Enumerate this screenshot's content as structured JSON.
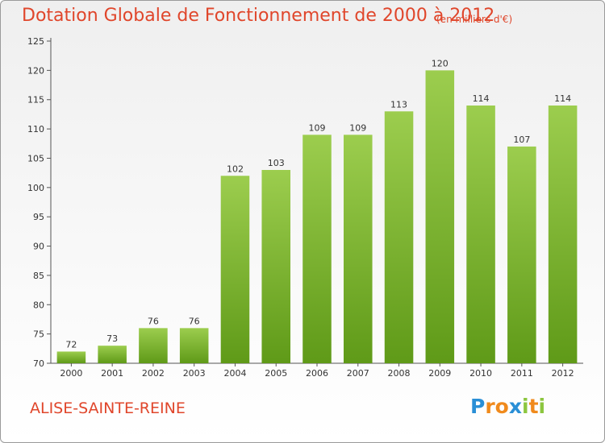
{
  "chart_data": {
    "type": "bar",
    "title": "Dotation Globale de Fonctionnement de 2000 à 2012",
    "subtitle": "(en milliers d'€)",
    "categories": [
      "2000",
      "2001",
      "2002",
      "2003",
      "2004",
      "2005",
      "2006",
      "2007",
      "2008",
      "2009",
      "2010",
      "2011",
      "2012"
    ],
    "values": [
      72,
      73,
      76,
      76,
      102,
      103,
      109,
      109,
      113,
      120,
      114,
      107,
      114
    ],
    "ylim": [
      70,
      125
    ],
    "yticks": [
      70,
      75,
      80,
      85,
      90,
      95,
      100,
      105,
      110,
      115,
      120,
      125
    ],
    "xlabel": "",
    "ylabel": "",
    "grid": false,
    "bar_color_top": "#9ccd4e",
    "bar_color_bottom": "#5f9a18"
  },
  "commune": "ALISE-SAINTE-REINE",
  "logo": {
    "letters": [
      "P",
      "r",
      "o",
      "x",
      "i",
      "t",
      "i"
    ],
    "colors": [
      "#2a8fd6",
      "#f08a1c",
      "#f08a1c",
      "#2a8fd6",
      "#8cc63f",
      "#f08a1c",
      "#8cc63f"
    ]
  },
  "colors": {
    "title": "#e0462b",
    "axis": "#555555"
  }
}
